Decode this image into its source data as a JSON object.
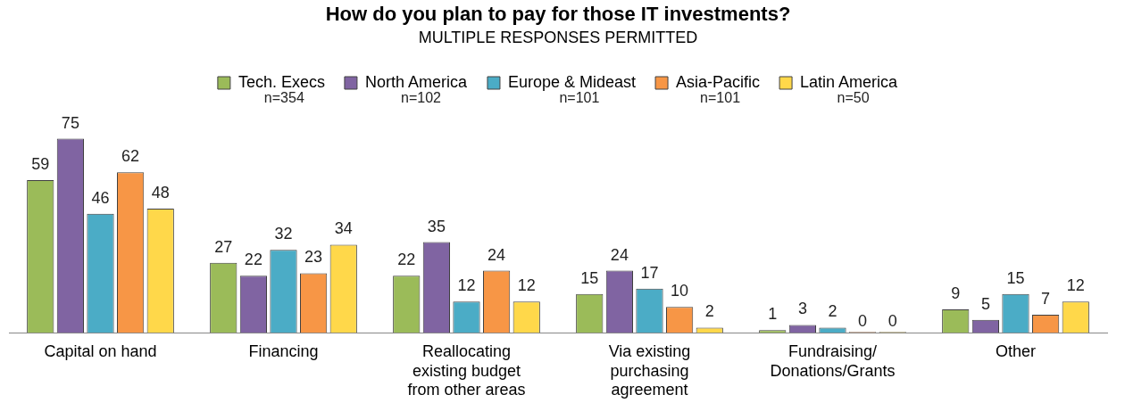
{
  "chart_data": {
    "type": "bar",
    "title": "How do you plan to pay for those IT investments?",
    "subtitle": "MULTIPLE RESPONSES PERMITTED",
    "categories": [
      "Capital on hand",
      "Financing",
      "Reallocating existing budget from other areas",
      "Via existing purchasing agreement",
      "Fundraising/ Donations/Grants",
      "Other"
    ],
    "series": [
      {
        "name": "Tech. Execs",
        "color": "#9bbb59",
        "values": [
          59,
          27,
          22,
          15,
          1,
          9
        ]
      },
      {
        "name": "North America",
        "color": "#8064a2",
        "values": [
          75,
          22,
          35,
          24,
          3,
          5
        ]
      },
      {
        "name": "Europe & Mideast",
        "color": "#4bacc6",
        "values": [
          46,
          32,
          12,
          17,
          2,
          15
        ]
      },
      {
        "name": "Asia-Pacific",
        "color": "#f79646",
        "values": [
          62,
          23,
          24,
          10,
          0,
          7
        ]
      },
      {
        "name": "Latin America",
        "color": "#ffd84a",
        "values": [
          48,
          34,
          12,
          2,
          0,
          12
        ]
      }
    ],
    "annotations": [
      "n=354",
      "n=102",
      "n=101",
      "n=101",
      "n=50"
    ],
    "data_labels": true,
    "legend": "top",
    "grid": false,
    "tick_labels": "x"
  }
}
